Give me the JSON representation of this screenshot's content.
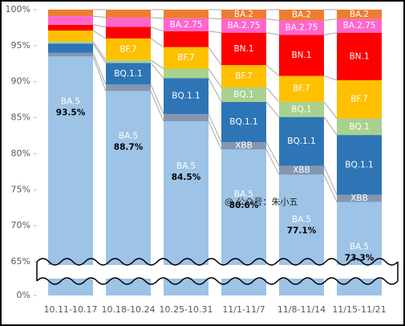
{
  "chart_data": {
    "type": "stacked_bar",
    "categories": [
      "10.11-10.17",
      "10.18-10.24",
      "10.25-10.31",
      "11/1-11/7",
      "11/8-11/14",
      "11/15-11/21"
    ],
    "series": [
      {
        "name": "BA.5",
        "color": "#9dc3e6",
        "values": [
          93.5,
          88.7,
          84.5,
          80.6,
          77.1,
          73.3
        ],
        "value_labels": [
          "93.5%",
          "88.7%",
          "84.5%",
          "80.6%",
          "77.1%",
          "73.3%"
        ],
        "show_label": [
          true,
          true,
          true,
          true,
          true,
          true
        ]
      },
      {
        "name": "XBB",
        "color": "#8497b0",
        "values": [
          0.5,
          0.9,
          1.0,
          1.0,
          1.2,
          1.0
        ],
        "show_label": [
          false,
          false,
          false,
          true,
          true,
          true
        ]
      },
      {
        "name": "BQ.1.1",
        "color": "#2e75b6",
        "values": [
          1.3,
          3.0,
          5.0,
          5.6,
          6.8,
          8.3
        ],
        "show_label": [
          false,
          true,
          true,
          true,
          true,
          true
        ]
      },
      {
        "name": "BQ.1",
        "color": "#a9d18e",
        "values": [
          0.3,
          0.4,
          1.3,
          2.0,
          2.1,
          2.3
        ],
        "show_label": [
          false,
          false,
          false,
          true,
          true,
          true
        ]
      },
      {
        "name": "BF.7",
        "color": "#ffc000",
        "values": [
          1.5,
          3.0,
          3.0,
          3.1,
          3.6,
          5.3
        ],
        "show_label": [
          false,
          true,
          true,
          true,
          true,
          true
        ]
      },
      {
        "name": "BN.1",
        "color": "#ff0000",
        "values": [
          0.8,
          1.6,
          2.2,
          4.5,
          5.7,
          6.6
        ],
        "show_label": [
          false,
          false,
          false,
          true,
          true,
          true
        ]
      },
      {
        "name": "BA.2.75",
        "color": "#ff66cc",
        "values": [
          1.2,
          1.3,
          1.8,
          1.9,
          2.0,
          1.9
        ],
        "show_label": [
          false,
          false,
          true,
          true,
          true,
          true
        ]
      },
      {
        "name": "BA.2",
        "color": "#ed7d31",
        "values": [
          0.9,
          1.1,
          1.2,
          1.3,
          1.5,
          1.3
        ],
        "show_label": [
          false,
          false,
          false,
          true,
          true,
          true
        ]
      }
    ],
    "ylim": [
      0,
      100
    ],
    "yticks": [
      {
        "value": 0,
        "label": "0%"
      },
      {
        "value": 65,
        "label": "65%"
      },
      {
        "value": 70,
        "label": "70%"
      },
      {
        "value": 75,
        "label": "75%"
      },
      {
        "value": 80,
        "label": "80%"
      },
      {
        "value": 85,
        "label": "85%"
      },
      {
        "value": 90,
        "label": "90%"
      },
      {
        "value": 95,
        "label": "95%"
      },
      {
        "value": 100,
        "label": "100%"
      }
    ],
    "axis_break": true,
    "watermark": "@ 公众号：朱小五"
  }
}
